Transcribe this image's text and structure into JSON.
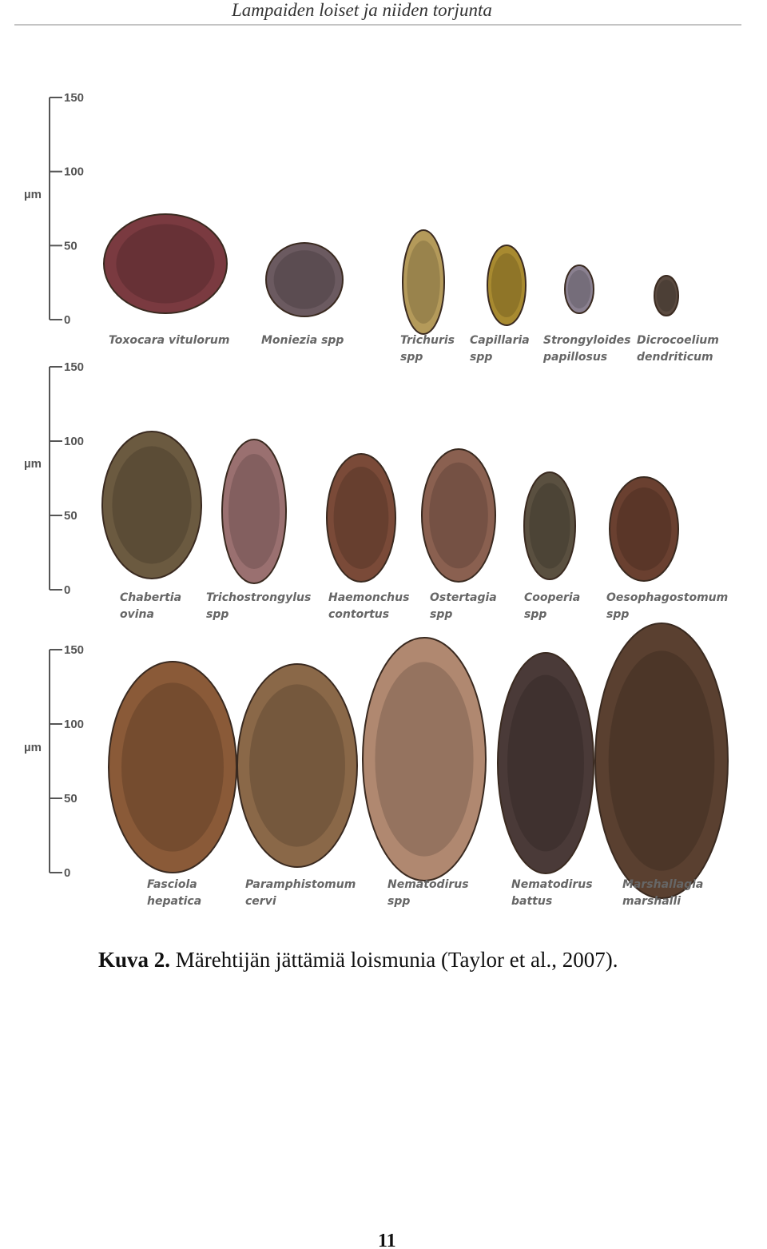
{
  "header": {
    "title": "Lampaiden loiset ja niiden torjunta"
  },
  "figure": {
    "panels": [
      {
        "unit": "µm",
        "ticks": [
          0,
          50,
          100,
          150
        ],
        "eggs": [
          {
            "label": [
              "Toxocara vitulorum"
            ]
          },
          {
            "label": [
              "Moniezia spp"
            ]
          },
          {
            "label": [
              "Trichuris",
              "spp"
            ]
          },
          {
            "label": [
              "Capillaria",
              "spp"
            ]
          },
          {
            "label": [
              "Strongyloides",
              "papillosus"
            ]
          },
          {
            "label": [
              "Dicrocoelium",
              "dendriticum"
            ]
          }
        ]
      },
      {
        "unit": "µm",
        "ticks": [
          0,
          50,
          100,
          150
        ],
        "eggs": [
          {
            "label": [
              "Chabertia",
              "ovina"
            ]
          },
          {
            "label": [
              "Trichostrongylus",
              "spp"
            ]
          },
          {
            "label": [
              "Haemonchus",
              "contortus"
            ]
          },
          {
            "label": [
              "Ostertagia",
              "spp"
            ]
          },
          {
            "label": [
              "Cooperia",
              "spp"
            ]
          },
          {
            "label": [
              "Oesophagostomum",
              "spp"
            ]
          }
        ]
      },
      {
        "unit": "µm",
        "ticks": [
          0,
          50,
          100,
          150
        ],
        "eggs": [
          {
            "label": [
              "Fasciola",
              "hepatica"
            ]
          },
          {
            "label": [
              "Paramphistomum",
              "cervi"
            ]
          },
          {
            "label": [
              "Nematodirus",
              "spp"
            ]
          },
          {
            "label": [
              "Nematodirus",
              "battus"
            ]
          },
          {
            "label": [
              "Marshallagia",
              "marshalli"
            ]
          }
        ]
      }
    ]
  },
  "caption": {
    "label": "Kuva 2.",
    "text": " Märehtijän jättämiä loismunia (Taylor et al., 2007)."
  },
  "page_number": "11"
}
